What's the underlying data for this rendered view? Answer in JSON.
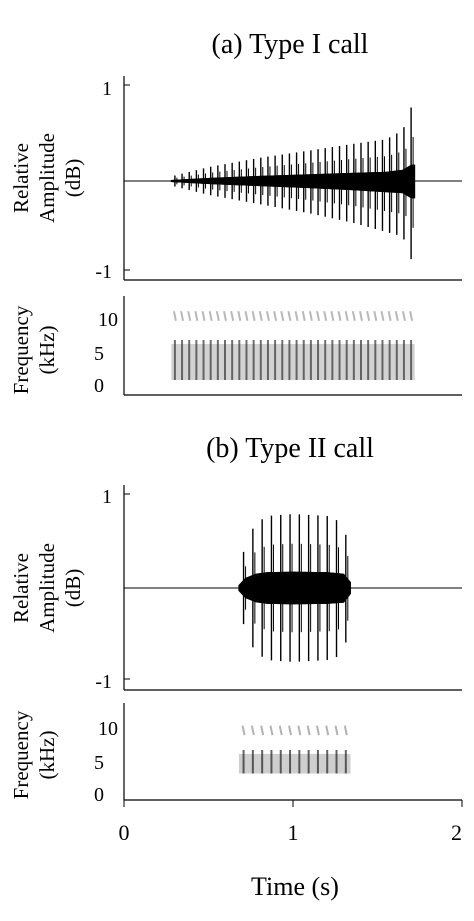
{
  "figure": {
    "axis_color": "#000000",
    "background": "#ffffff"
  },
  "chart_data": [
    {
      "type": "waveform",
      "panel": "a",
      "title": "(a) Type I call",
      "ylabel_line1": "Relative",
      "ylabel_line2": "Amplitude",
      "ylabel_line3": "(dB)",
      "yticks": [
        "1",
        "-1"
      ],
      "ylim": [
        -1,
        1
      ],
      "xlim": [
        0,
        2
      ],
      "grid": false,
      "signal": {
        "start_s": 0.28,
        "end_s": 1.72,
        "pulse_count": 34,
        "envelope_up": [
          [
            0.28,
            0.05
          ],
          [
            0.5,
            0.15
          ],
          [
            0.8,
            0.25
          ],
          [
            1.1,
            0.33
          ],
          [
            1.35,
            0.4
          ],
          [
            1.55,
            0.45
          ],
          [
            1.65,
            0.55
          ],
          [
            1.7,
            0.8
          ]
        ],
        "envelope_down": [
          [
            0.28,
            -0.05
          ],
          [
            0.5,
            -0.15
          ],
          [
            0.8,
            -0.25
          ],
          [
            1.1,
            -0.35
          ],
          [
            1.35,
            -0.45
          ],
          [
            1.55,
            -0.55
          ],
          [
            1.65,
            -0.6
          ],
          [
            1.7,
            -0.85
          ]
        ],
        "color": "#000000"
      }
    },
    {
      "type": "spectrogram",
      "panel": "a",
      "ylabel_line1": "Frequency",
      "ylabel_line2": "(kHz)",
      "yticks": [
        "10",
        "5",
        "0"
      ],
      "ylim": [
        0,
        12
      ],
      "xlim": [
        0,
        2
      ],
      "signal": {
        "start_s": 0.28,
        "end_s": 1.72,
        "pulse_count": 34,
        "band_low_khz": 1.5,
        "band_high_khz": 6.0,
        "harmonic_khz": 9.5,
        "color": "#333333"
      }
    },
    {
      "type": "waveform",
      "panel": "b",
      "title": "(b) Type II call",
      "ylabel_line1": "Relative",
      "ylabel_line2": "Amplitude",
      "ylabel_line3": "(dB)",
      "yticks": [
        "1",
        "-1"
      ],
      "ylim": [
        -1,
        1
      ],
      "xlim": [
        0,
        2
      ],
      "grid": false,
      "signal": {
        "start_s": 0.68,
        "end_s": 1.34,
        "pulse_count": 12,
        "envelope_up": [
          [
            0.68,
            0.15
          ],
          [
            0.72,
            0.5
          ],
          [
            0.78,
            0.7
          ],
          [
            0.85,
            0.78
          ],
          [
            1.0,
            0.8
          ],
          [
            1.2,
            0.78
          ],
          [
            1.3,
            0.7
          ],
          [
            1.34,
            0.3
          ]
        ],
        "envelope_down": [
          [
            0.68,
            -0.15
          ],
          [
            0.72,
            -0.5
          ],
          [
            0.78,
            -0.7
          ],
          [
            0.85,
            -0.78
          ],
          [
            1.0,
            -0.8
          ],
          [
            1.2,
            -0.78
          ],
          [
            1.3,
            -0.72
          ],
          [
            1.34,
            -0.3
          ]
        ],
        "color": "#000000"
      }
    },
    {
      "type": "spectrogram",
      "panel": "b",
      "ylabel_line1": "Frequency",
      "ylabel_line2": "(kHz)",
      "yticks": [
        "10",
        "5",
        "0"
      ],
      "ylim": [
        0,
        12
      ],
      "xlim": [
        0,
        2
      ],
      "xticks": [
        "0",
        "1",
        "2"
      ],
      "xlabel": "Time (s)",
      "signal": {
        "start_s": 0.68,
        "end_s": 1.34,
        "pulse_count": 12,
        "band_low_khz": 3.0,
        "band_high_khz": 5.5,
        "harmonic_khz": 8.5,
        "color": "#222222"
      }
    }
  ]
}
